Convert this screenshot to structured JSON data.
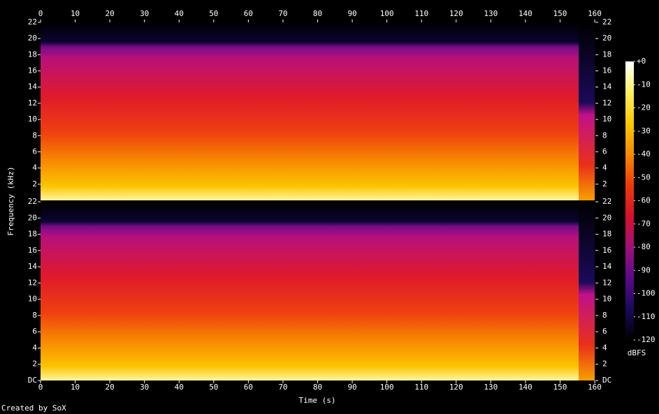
{
  "chart_data": {
    "type": "spectrogram",
    "xlabel": "Time (s)",
    "ylabel": "Frequency (kHz)",
    "xlim": [
      0,
      160
    ],
    "xticks": [
      0,
      10,
      20,
      30,
      40,
      50,
      60,
      70,
      80,
      90,
      100,
      110,
      120,
      130,
      140,
      150,
      160
    ],
    "panels": [
      {
        "ylim": [
          0,
          22
        ],
        "yticks": [
          2,
          4,
          6,
          8,
          10,
          12,
          14,
          16,
          18,
          20,
          22
        ]
      },
      {
        "ylim": [
          0,
          22
        ],
        "yticks": [
          {
            "value": 0,
            "label": "DC"
          },
          2,
          4,
          6,
          8,
          10,
          12,
          14,
          16,
          18,
          20,
          22
        ]
      }
    ],
    "colorbar": {
      "label": "dBFS",
      "lim": [
        -120,
        0
      ],
      "ticks": [
        {
          "value": 0,
          "label": "+0"
        },
        -10,
        -20,
        -30,
        -40,
        -50,
        -60,
        -70,
        -80,
        -90,
        -100,
        -110,
        -120
      ],
      "colormap": [
        "#000000",
        "#1a0a5a",
        "#5a0a8a",
        "#a0107a",
        "#d8102a",
        "#ee3a08",
        "#f78a00",
        "#fcc800",
        "#fff060",
        "#ffffff"
      ]
    },
    "credit": "Created by SoX"
  }
}
